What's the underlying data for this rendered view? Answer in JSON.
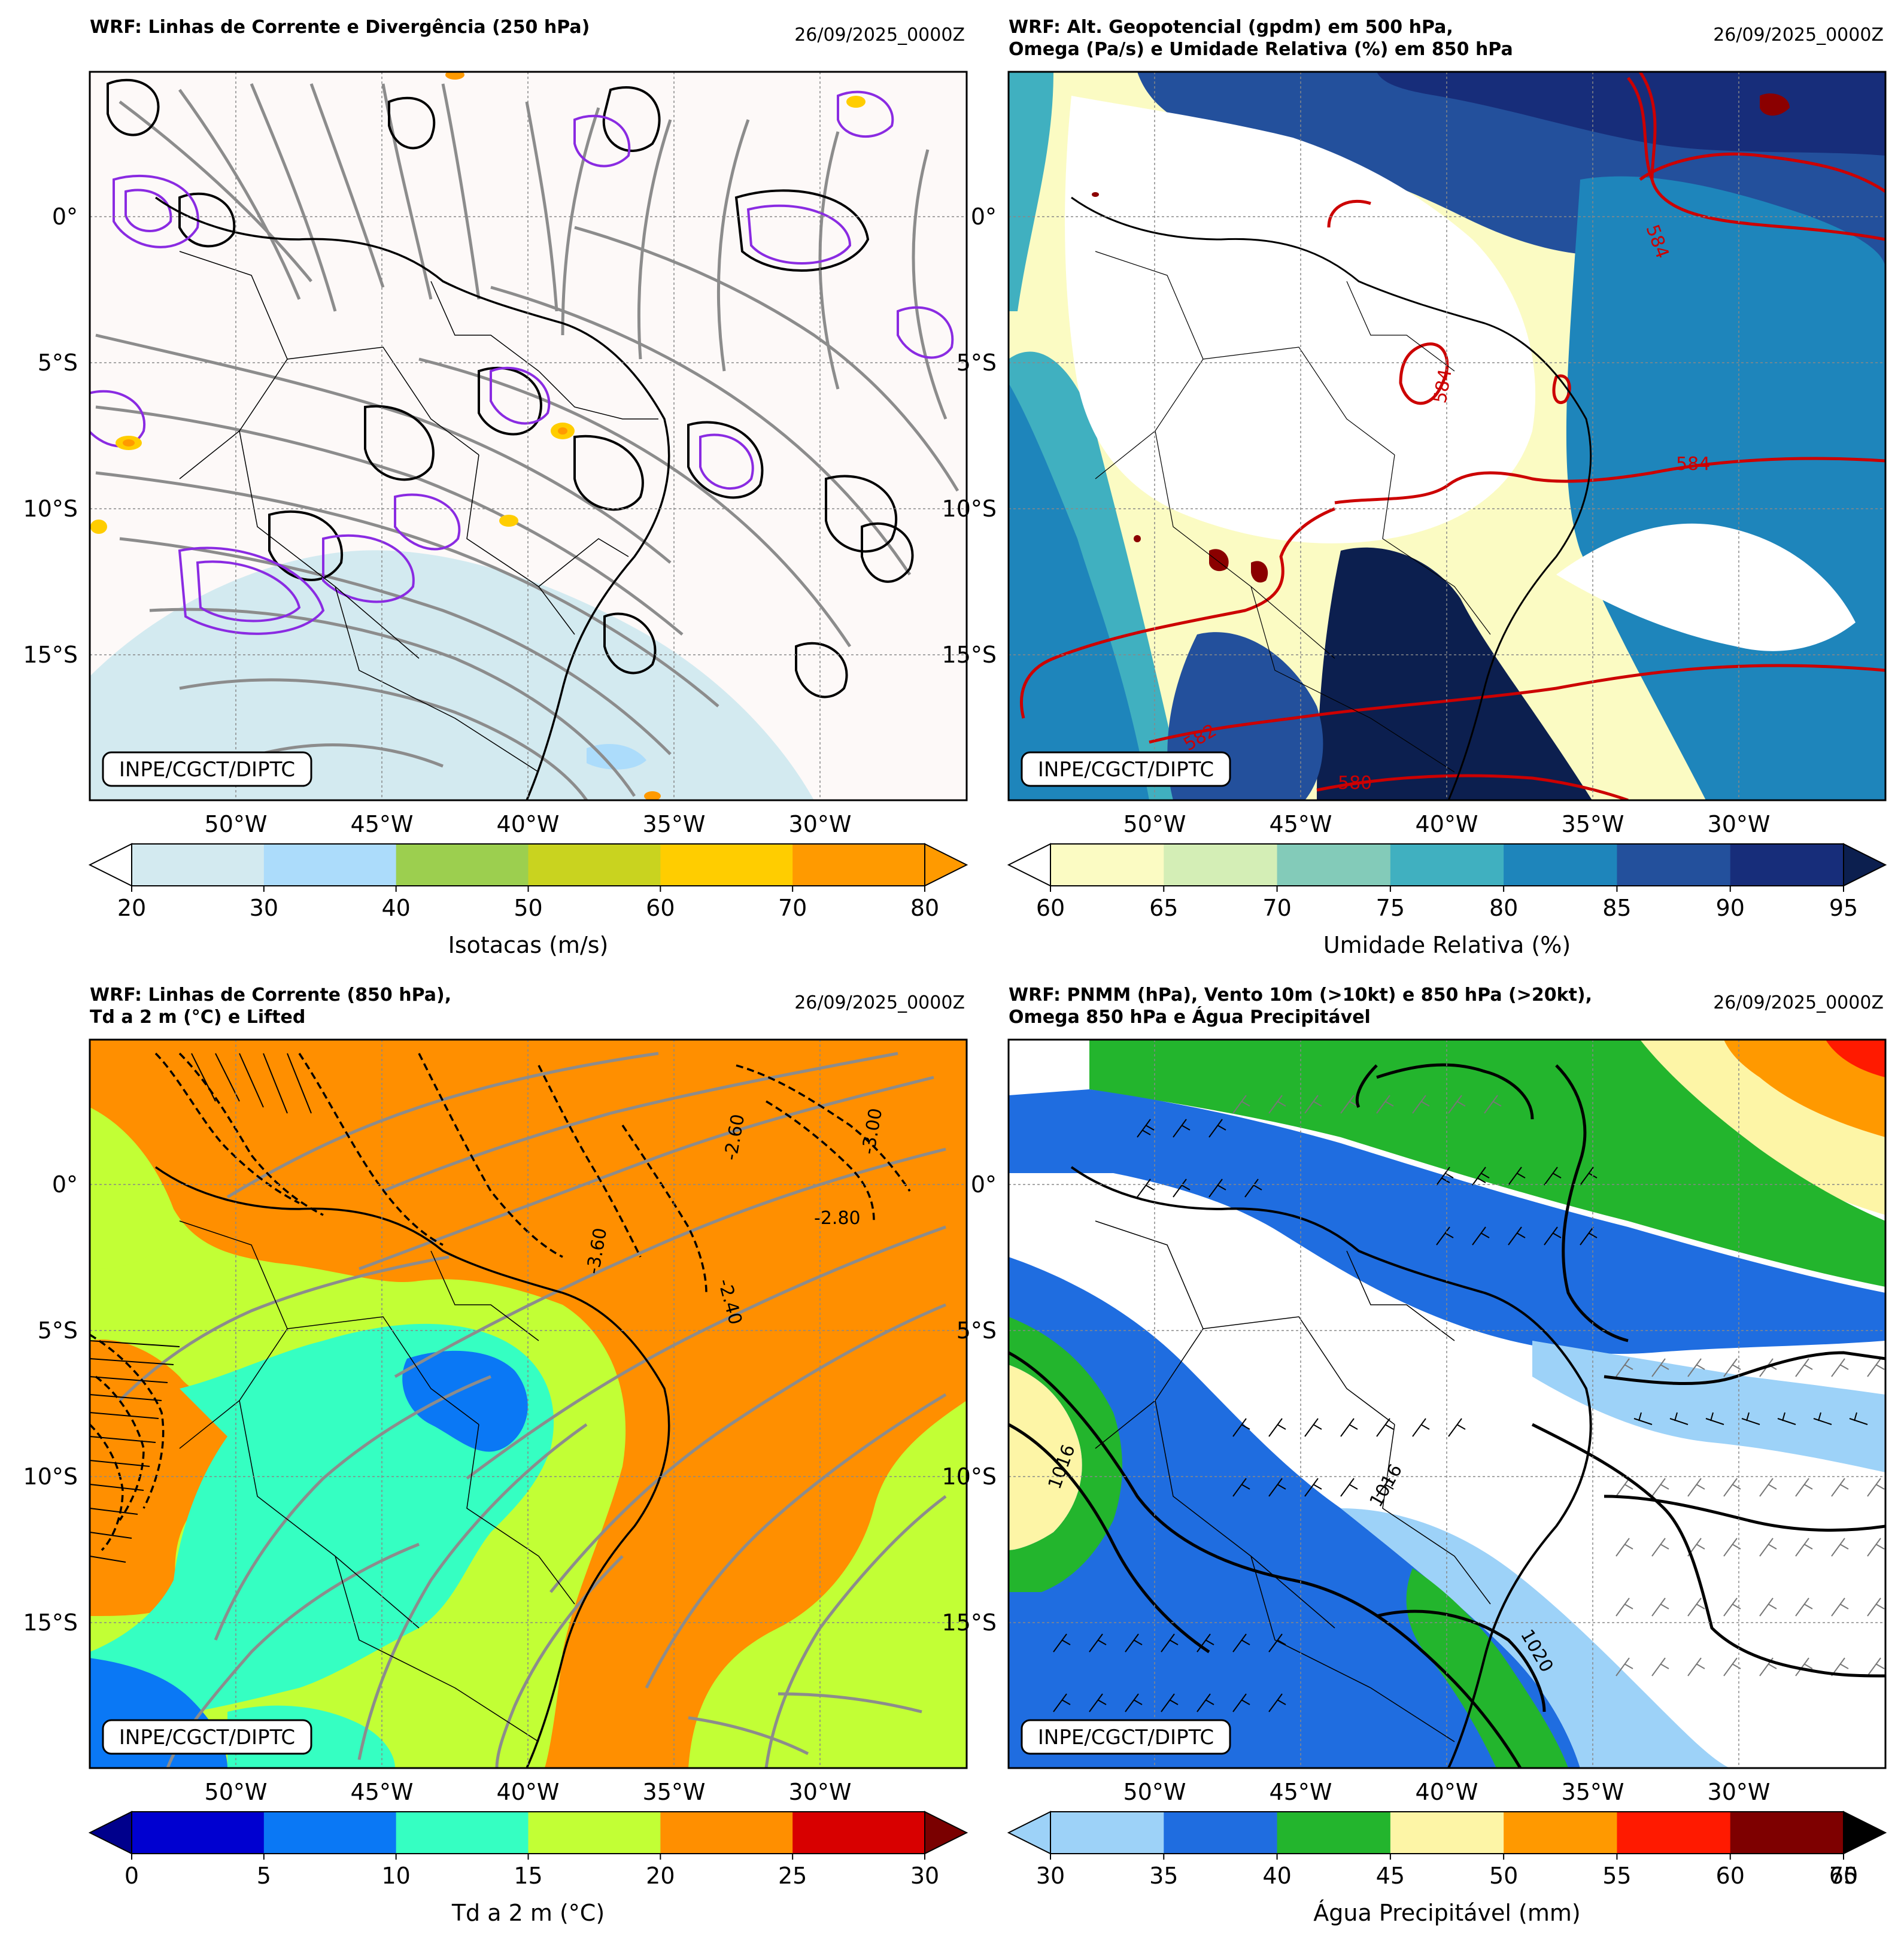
{
  "panels": [
    {
      "title_lines": [
        "WRF: Linhas de Corrente e Divergência (250 hPa)"
      ],
      "date": "26/09/2025_0000Z",
      "badge": "INPE/CGCT/DIPTC",
      "lon_ticks": [
        "50°W",
        "45°W",
        "40°W",
        "35°W",
        "30°W"
      ],
      "lat_ticks": [
        "0°",
        "5°S",
        "10°S",
        "15°S"
      ],
      "colorbar": {
        "label": "Isotacas (m/s)",
        "ticks": [
          "20",
          "30",
          "40",
          "50",
          "60",
          "70",
          "80"
        ],
        "colors": [
          "#d3eaf0",
          "#acdcfb",
          "#9ccf4f",
          "#c9d31f",
          "#ffcd00",
          "#ff9a00"
        ],
        "extend_left_color": "#ffffff",
        "extend_right_color": "#ff9a00"
      },
      "map_background": "#fdf9f8"
    },
    {
      "title_lines": [
        "WRF: Alt. Geopotencial (gpdm) em 500 hPa,",
        "Omega (Pa/s) e Umidade Relativa (%) em 850 hPa"
      ],
      "date": "26/09/2025_0000Z",
      "badge": "INPE/CGCT/DIPTC",
      "lon_ticks": [
        "50°W",
        "45°W",
        "40°W",
        "35°W",
        "30°W"
      ],
      "lat_ticks": [
        "0°",
        "5°S",
        "10°S",
        "15°S"
      ],
      "contour_labels": [
        "584",
        "584",
        "584",
        "582",
        "580"
      ],
      "colorbar": {
        "label": "Umidade Relativa (%)",
        "ticks": [
          "60",
          "65",
          "70",
          "75",
          "80",
          "85",
          "90",
          "95"
        ],
        "colors": [
          "#fbfbc3",
          "#d4eeb6",
          "#83cbb9",
          "#40b0c0",
          "#1e85bb",
          "#23509c",
          "#172d7a"
        ],
        "extend_left_color": "#ffffff",
        "extend_right_color": "#0c1f4f"
      },
      "map_background": "#ffffff"
    },
    {
      "title_lines": [
        "WRF: Linhas de Corrente (850 hPa),",
        "Td a 2 m (°C) e Lifted"
      ],
      "date": "26/09/2025_0000Z",
      "badge": "INPE/CGCT/DIPTC",
      "lon_ticks": [
        "50°W",
        "45°W",
        "40°W",
        "35°W",
        "30°W"
      ],
      "lat_ticks": [
        "0°",
        "5°S",
        "10°S",
        "15°S"
      ],
      "contour_labels": [
        "-2.80",
        "-2.40",
        "-3.60",
        "-3.00",
        "-2.60"
      ],
      "colorbar": {
        "label": "Td a 2 m (°C)",
        "ticks": [
          "0",
          "5",
          "10",
          "15",
          "20",
          "25",
          "30"
        ],
        "colors": [
          "#0000d0",
          "#0a78f5",
          "#35ffc2",
          "#c2ff35",
          "#ff8f00",
          "#d80000"
        ],
        "extend_left_color": "#00008c",
        "extend_right_color": "#7a0000"
      },
      "map_background": "#ff8f00"
    },
    {
      "title_lines": [
        "WRF: PNMM (hPa), Vento 10m (>10kt) e 850 hPa (>20kt),",
        "Omega 850 hPa e Água Precipitável"
      ],
      "date": "26/09/2025_0000Z",
      "badge": "INPE/CGCT/DIPTC",
      "lon_ticks": [
        "50°W",
        "45°W",
        "40°W",
        "35°W",
        "30°W"
      ],
      "lat_ticks": [
        "0°",
        "5°S",
        "10°S",
        "15°S"
      ],
      "contour_labels": [
        "1020",
        "1016",
        "1016"
      ],
      "colorbar": {
        "label": "Água Precipitável (mm)",
        "ticks": [
          "30",
          "35",
          "40",
          "45",
          "50",
          "55",
          "60",
          "65"
        ],
        "extra_tick": "70",
        "colors": [
          "#9dd2f8",
          "#1f6de0",
          "#23b52d",
          "#fdf5a6",
          "#ff9900",
          "#ff1a00",
          "#7e0000"
        ],
        "extend_left_color": "#9dd2f8",
        "extend_right_color": "#000000"
      },
      "map_background": "#ffffff"
    }
  ],
  "chart_data": [
    {
      "type": "heatmap",
      "title": "WRF: Linhas de Corrente e Divergência (250 hPa)",
      "lon_range": [
        -55.5,
        -25.5
      ],
      "lat_range": [
        -20,
        5
      ],
      "variable": "Isotacas (m/s)",
      "levels": [
        20,
        30,
        40,
        50,
        60,
        70,
        80
      ]
    },
    {
      "type": "heatmap",
      "title": "WRF: Alt. Geopotencial (gpdm) em 500 hPa, Omega (Pa/s) e Umidade Relativa (%) em 850 hPa",
      "lon_range": [
        -55.5,
        -25.5
      ],
      "lat_range": [
        -20,
        5
      ],
      "variable": "Umidade Relativa (%)",
      "levels": [
        60,
        65,
        70,
        75,
        80,
        85,
        90,
        95
      ],
      "geopotential_contours_gpdm": [
        584,
        582,
        580
      ]
    },
    {
      "type": "heatmap",
      "title": "WRF: Linhas de Corrente (850 hPa), Td a 2 m (°C) e Lifted",
      "lon_range": [
        -55.5,
        -25.5
      ],
      "lat_range": [
        -20,
        5
      ],
      "variable": "Td a 2 m (°C)",
      "levels": [
        0,
        5,
        10,
        15,
        20,
        25,
        30
      ],
      "lifted_contours": [
        -2.4,
        -2.6,
        -2.8,
        -3.0,
        -3.6
      ]
    },
    {
      "type": "heatmap",
      "title": "WRF: PNMM (hPa), Vento 10m (>10kt) e 850 hPa (>20kt), Omega 850 hPa e Água Precipitável",
      "lon_range": [
        -55.5,
        -25.5
      ],
      "lat_range": [
        -20,
        5
      ],
      "variable": "Água Precipitável (mm)",
      "levels": [
        30,
        35,
        40,
        45,
        50,
        55,
        60,
        65,
        70
      ],
      "pnmm_contours_hpa": [
        1016,
        1020
      ]
    }
  ]
}
